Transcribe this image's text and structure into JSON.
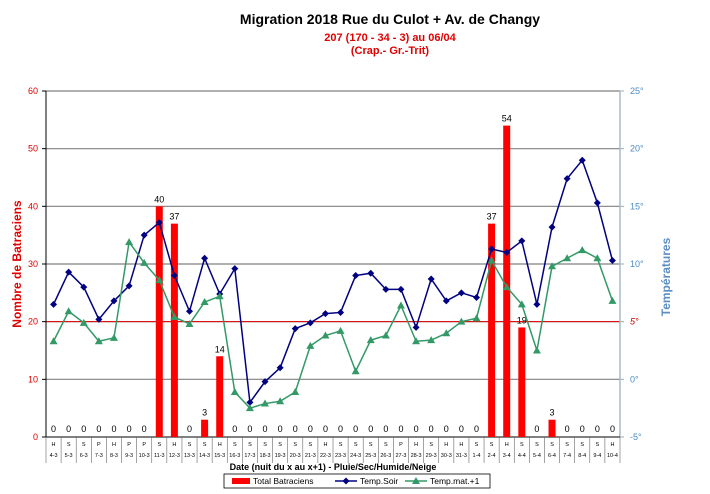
{
  "chart_data": {
    "type": "bar+line",
    "title": "Migration  2018 Rue du Culot + Av. de Changy",
    "subtitle": [
      "207 (170 - 34 - 3) au 06/04",
      "(Crap.- Gr.-Trit)"
    ],
    "xlabel": "Date (nuit du x au x+1) - Pluie/Sec/Humide/Neige",
    "ylabel": "Nombre de Batraciens",
    "y2label": "Températures",
    "ylim": [
      0,
      60
    ],
    "yticks": [
      "0",
      "10",
      "20",
      "30",
      "40",
      "50",
      "60"
    ],
    "y2lim": [
      -5,
      25
    ],
    "y2ticks": [
      "-5°",
      "0°",
      "5°",
      "10°",
      "15°",
      "20°",
      "25°"
    ],
    "reference_line": {
      "value": 5,
      "axis": "y2",
      "color": "#e00000"
    },
    "grid": true,
    "legend_position": "bottom",
    "categories": [
      "4-3",
      "5-3",
      "6-3",
      "7-3",
      "8-3",
      "9-3",
      "10-3",
      "11-3",
      "12-3",
      "13-3",
      "14-3",
      "15-3",
      "16-3",
      "17-3",
      "18-3",
      "19-3",
      "20-3",
      "21-3",
      "22-3",
      "23-3",
      "24-3",
      "25-3",
      "26-3",
      "27-3",
      "28-3",
      "29-3",
      "30-3",
      "31-3",
      "1-4",
      "2-4",
      "3-4",
      "4-4",
      "5-4",
      "6-4",
      "7-4",
      "8-4",
      "9-4",
      "10-4"
    ],
    "weather": [
      "H",
      "S",
      "S",
      "P",
      "H",
      "P",
      "P",
      "S",
      "H",
      "S",
      "S",
      "H",
      "S",
      "S",
      "S",
      "S",
      "S",
      "S",
      "H",
      "S",
      "S",
      "S",
      "S",
      "P",
      "H",
      "S",
      "H",
      "H",
      "S",
      "S",
      "H",
      "S",
      "S",
      "S",
      "S",
      "S",
      "S",
      "H"
    ],
    "series": [
      {
        "name": "Total Batraciens",
        "type": "bar",
        "axis": "y",
        "color": "#ff0000",
        "values": [
          0,
          0,
          0,
          0,
          0,
          0,
          0,
          40,
          37,
          0,
          3,
          14,
          0,
          0,
          0,
          0,
          0,
          0,
          0,
          0,
          0,
          0,
          0,
          0,
          0,
          0,
          0,
          0,
          0,
          37,
          54,
          19,
          0,
          3,
          0,
          0,
          0,
          0
        ]
      },
      {
        "name": "Temp.Soir",
        "type": "line",
        "axis": "y2",
        "color": "#000080",
        "marker": "diamond",
        "values": [
          6.5,
          9.3,
          8.0,
          5.2,
          6.8,
          8.1,
          12.5,
          13.6,
          9.0,
          5.9,
          10.5,
          7.4,
          9.6,
          -2.0,
          -0.2,
          1.0,
          4.4,
          4.9,
          5.7,
          5.8,
          9.0,
          9.2,
          7.8,
          7.8,
          4.5,
          8.7,
          6.8,
          7.5,
          7.1,
          11.3,
          11.0,
          12.0,
          6.5,
          13.2,
          17.4,
          19.0,
          15.3,
          10.3
        ]
      },
      {
        "name": "Temp.mat.+1",
        "type": "line",
        "axis": "y2",
        "color": "#339966",
        "marker": "triangle",
        "values": [
          3.3,
          5.9,
          4.9,
          3.3,
          3.6,
          11.9,
          10.1,
          8.6,
          5.4,
          4.8,
          6.7,
          7.2,
          -1.1,
          -2.5,
          -2.1,
          -1.9,
          -1.1,
          2.9,
          3.8,
          4.2,
          0.7,
          3.4,
          3.8,
          6.4,
          3.3,
          3.4,
          4.0,
          5.0,
          5.3,
          10.3,
          8.0,
          6.5,
          2.5,
          9.8,
          10.5,
          11.2,
          10.5,
          6.8
        ]
      }
    ]
  }
}
